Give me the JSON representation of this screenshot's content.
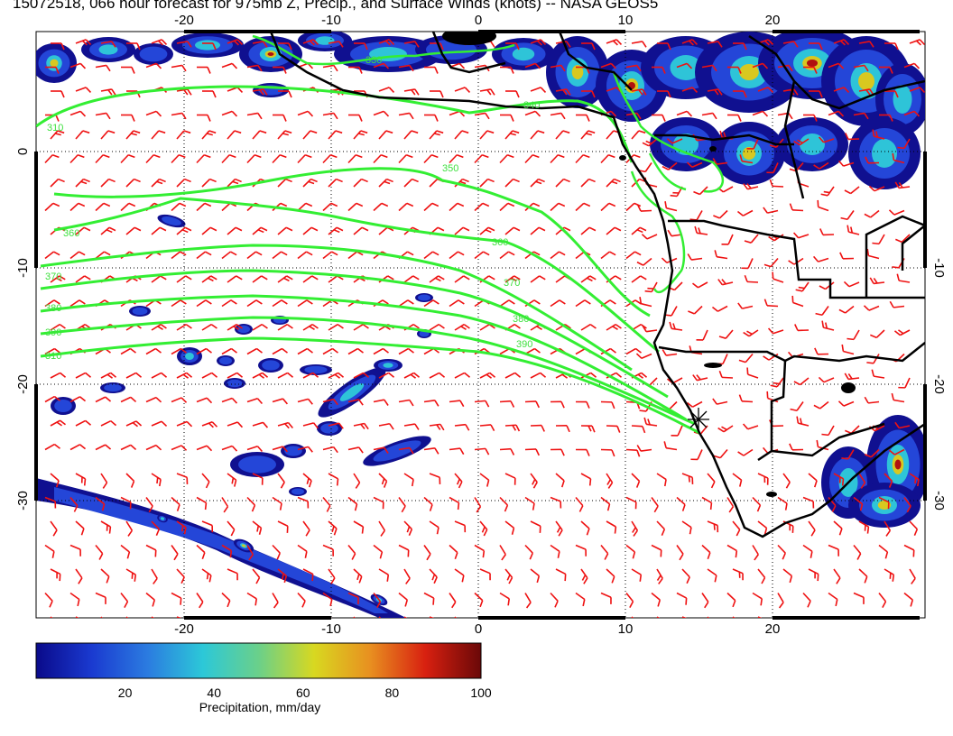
{
  "title": "15072518, 066 hour forecast for 975mb Z, Precip., and Surface Winds (knots) -- NASA GEOS5",
  "axes": {
    "lon_ticks_top": [
      "-20",
      "-10",
      "0",
      "10",
      "20"
    ],
    "lon_ticks_bottom": [
      "-20",
      "-10",
      "0",
      "10",
      "20"
    ],
    "lat_ticks_left": [
      "0",
      "-10",
      "-20",
      "-30"
    ],
    "lat_ticks_right": [
      "-10",
      "-20",
      "-30"
    ]
  },
  "contours": {
    "color": "#33ee33",
    "labels": [
      "310",
      "330",
      "340",
      "350",
      "360",
      "360",
      "370",
      "370",
      "380",
      "380",
      "390",
      "390",
      "310"
    ]
  },
  "colorbar": {
    "label": "Precipitation, mm/day",
    "ticks": [
      "20",
      "40",
      "60",
      "80",
      "100"
    ],
    "colors": [
      "#0a0a8a",
      "#1a3ad0",
      "#2b7be0",
      "#2cc8d8",
      "#6ad08a",
      "#d8d820",
      "#e89020",
      "#d82010",
      "#6a0808"
    ]
  },
  "colors": {
    "wind_barbs": "#ee1111",
    "coastline": "#000000",
    "gridlines": "#000000"
  }
}
